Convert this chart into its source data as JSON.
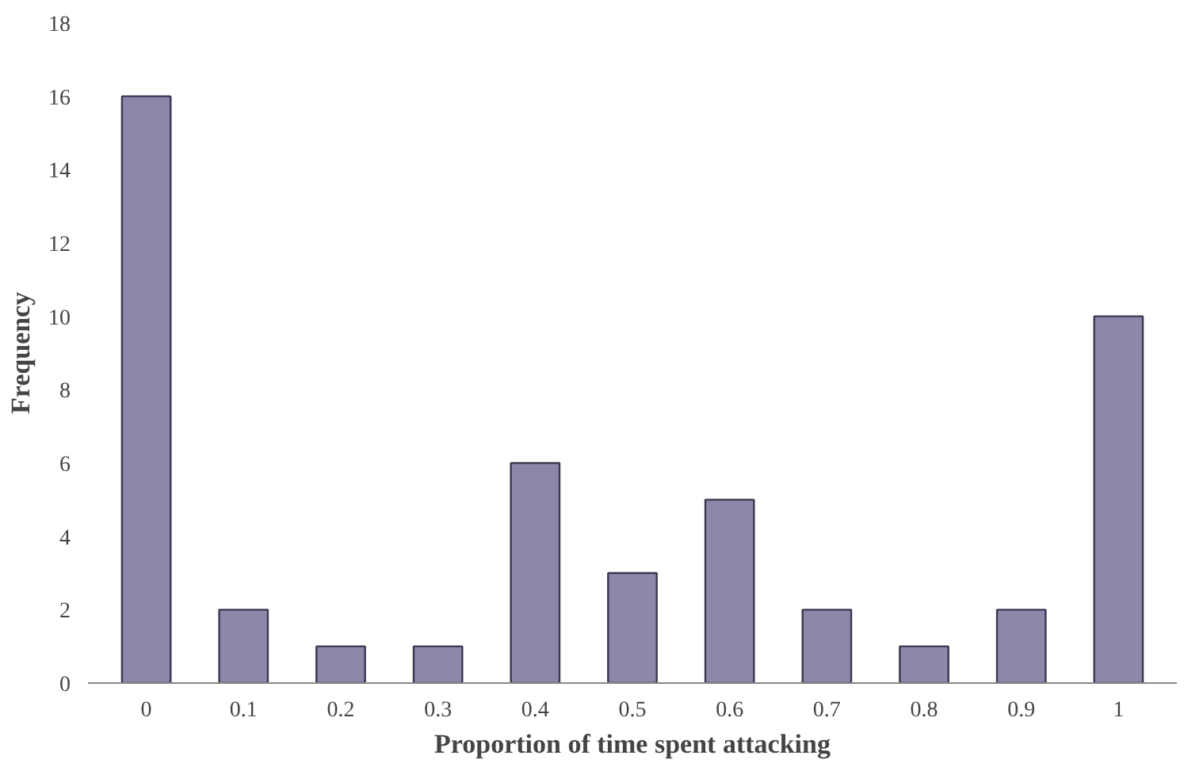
{
  "chart_data": {
    "type": "bar",
    "xlabel": "Proportion of time spent attacking",
    "ylabel": "Frequency",
    "categories": [
      "0",
      "0.1",
      "0.2",
      "0.3",
      "0.4",
      "0.5",
      "0.6",
      "0.7",
      "0.8",
      "0.9",
      "1"
    ],
    "values": [
      16,
      2,
      1,
      1,
      6,
      3,
      5,
      2,
      1,
      2,
      10
    ],
    "color": "#8c88aa",
    "ylim": [
      0,
      18
    ],
    "yticks": [
      0,
      2,
      4,
      6,
      8,
      10,
      12,
      14,
      16,
      18
    ],
    "grid": false
  }
}
